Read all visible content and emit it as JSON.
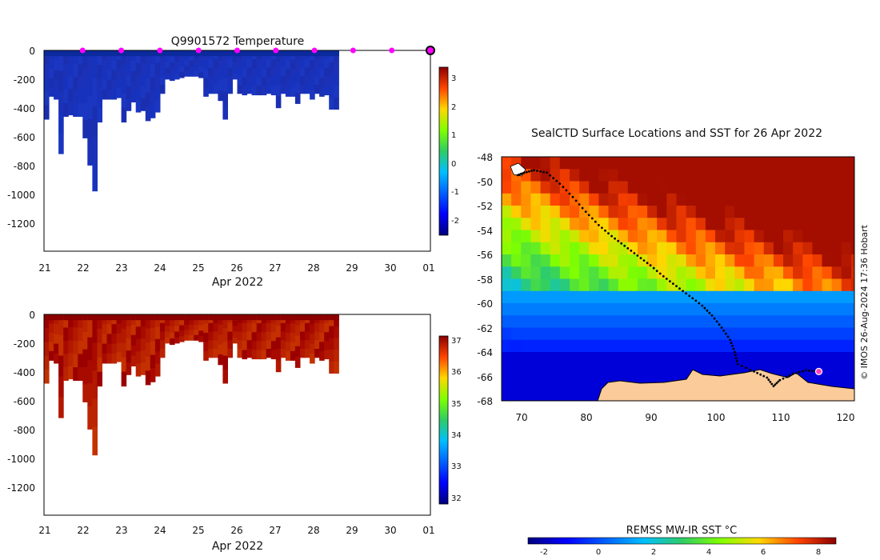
{
  "chart_data": [
    {
      "type": "heatmap",
      "title": "Q9901572  Temperature",
      "xlabel": "Apr 2022",
      "x_ticks": [
        "21",
        "22",
        "23",
        "24",
        "25",
        "26",
        "27",
        "28",
        "29",
        "30",
        "01"
      ],
      "xlim_days": [
        21,
        31
      ],
      "y_ticks": [
        "0",
        "-200",
        "-400",
        "-600",
        "-800",
        "-1000",
        "-1200"
      ],
      "ylim": [
        -1400,
        0
      ],
      "colorbar_ticks": [
        "3",
        "2",
        "1",
        "0",
        "-1",
        "-2"
      ],
      "colorbar_range": [
        -2.6,
        3.4
      ],
      "profile_markers_day": [
        22,
        23,
        24,
        25,
        26,
        27,
        28,
        29,
        30
      ],
      "current_marker_day": 31,
      "profiles": {
        "day_start": 21.0,
        "day_step": 0.125,
        "max_depth": [
          480,
          320,
          340,
          720,
          460,
          450,
          460,
          460,
          610,
          800,
          980,
          500,
          340,
          340,
          340,
          330,
          500,
          420,
          360,
          430,
          420,
          490,
          470,
          430,
          300,
          200,
          210,
          200,
          190,
          180,
          180,
          180,
          190,
          320,
          300,
          300,
          350,
          480,
          300,
          200,
          300,
          310,
          300,
          310,
          310,
          310,
          300,
          310,
          400,
          300,
          320,
          320,
          370,
          300,
          300,
          340,
          300,
          320,
          310,
          410,
          410
        ]
      }
    },
    {
      "type": "heatmap",
      "title": "",
      "xlabel": "Apr 2022",
      "x_ticks": [
        "21",
        "22",
        "23",
        "24",
        "25",
        "26",
        "27",
        "28",
        "29",
        "30",
        "01"
      ],
      "xlim_days": [
        21,
        31
      ],
      "y_ticks": [
        "0",
        "-200",
        "-400",
        "-600",
        "-800",
        "-1000",
        "-1200"
      ],
      "ylim": [
        -1400,
        0
      ],
      "colorbar_ticks": [
        "37",
        "36",
        "35",
        "34",
        "33",
        "32"
      ],
      "colorbar_range": [
        31.8,
        37.2
      ]
    },
    {
      "type": "heatmap",
      "title": "SealCTD Surface Locations and SST for 26 Apr 2022",
      "x_ticks": [
        "70",
        "80",
        "90",
        "100",
        "110",
        "120"
      ],
      "xlim": [
        67,
        121.5
      ],
      "y_ticks": [
        "-48",
        "-50",
        "-52",
        "-54",
        "-56",
        "-58",
        "-60",
        "-62",
        "-64",
        "-66",
        "-68"
      ],
      "ylim": [
        -68,
        -48
      ],
      "colorbar_label": "REMSS MW-IR SST °C",
      "colorbar_ticks": [
        "-2",
        "0",
        "2",
        "4",
        "6",
        "8"
      ],
      "colorbar_range": [
        -3,
        8.5
      ],
      "track": [
        [
          69.5,
          -49.5
        ],
        [
          70.5,
          -49.3
        ],
        [
          72,
          -49.1
        ],
        [
          74,
          -49.3
        ],
        [
          76,
          -50.2
        ],
        [
          78,
          -51.3
        ],
        [
          80,
          -52.5
        ],
        [
          82,
          -53.6
        ],
        [
          84,
          -54.5
        ],
        [
          86,
          -55.3
        ],
        [
          88,
          -56.1
        ],
        [
          90,
          -56.9
        ],
        [
          92,
          -57.8
        ],
        [
          94,
          -58.6
        ],
        [
          96,
          -59.4
        ],
        [
          98,
          -60.2
        ],
        [
          99.5,
          -61
        ],
        [
          101,
          -62
        ],
        [
          102.3,
          -63
        ],
        [
          103,
          -64
        ],
        [
          103.5,
          -65
        ],
        [
          106,
          -65.6
        ],
        [
          108,
          -66.1
        ],
        [
          109,
          -66.8
        ],
        [
          110,
          -66.3
        ],
        [
          112,
          -65.8
        ],
        [
          114,
          -65.5
        ],
        [
          116,
          -65.6
        ]
      ],
      "current_position": [
        116,
        -65.6
      ]
    }
  ],
  "credit": "© IMOS 26-Aug-2024 17:36 Hobart"
}
